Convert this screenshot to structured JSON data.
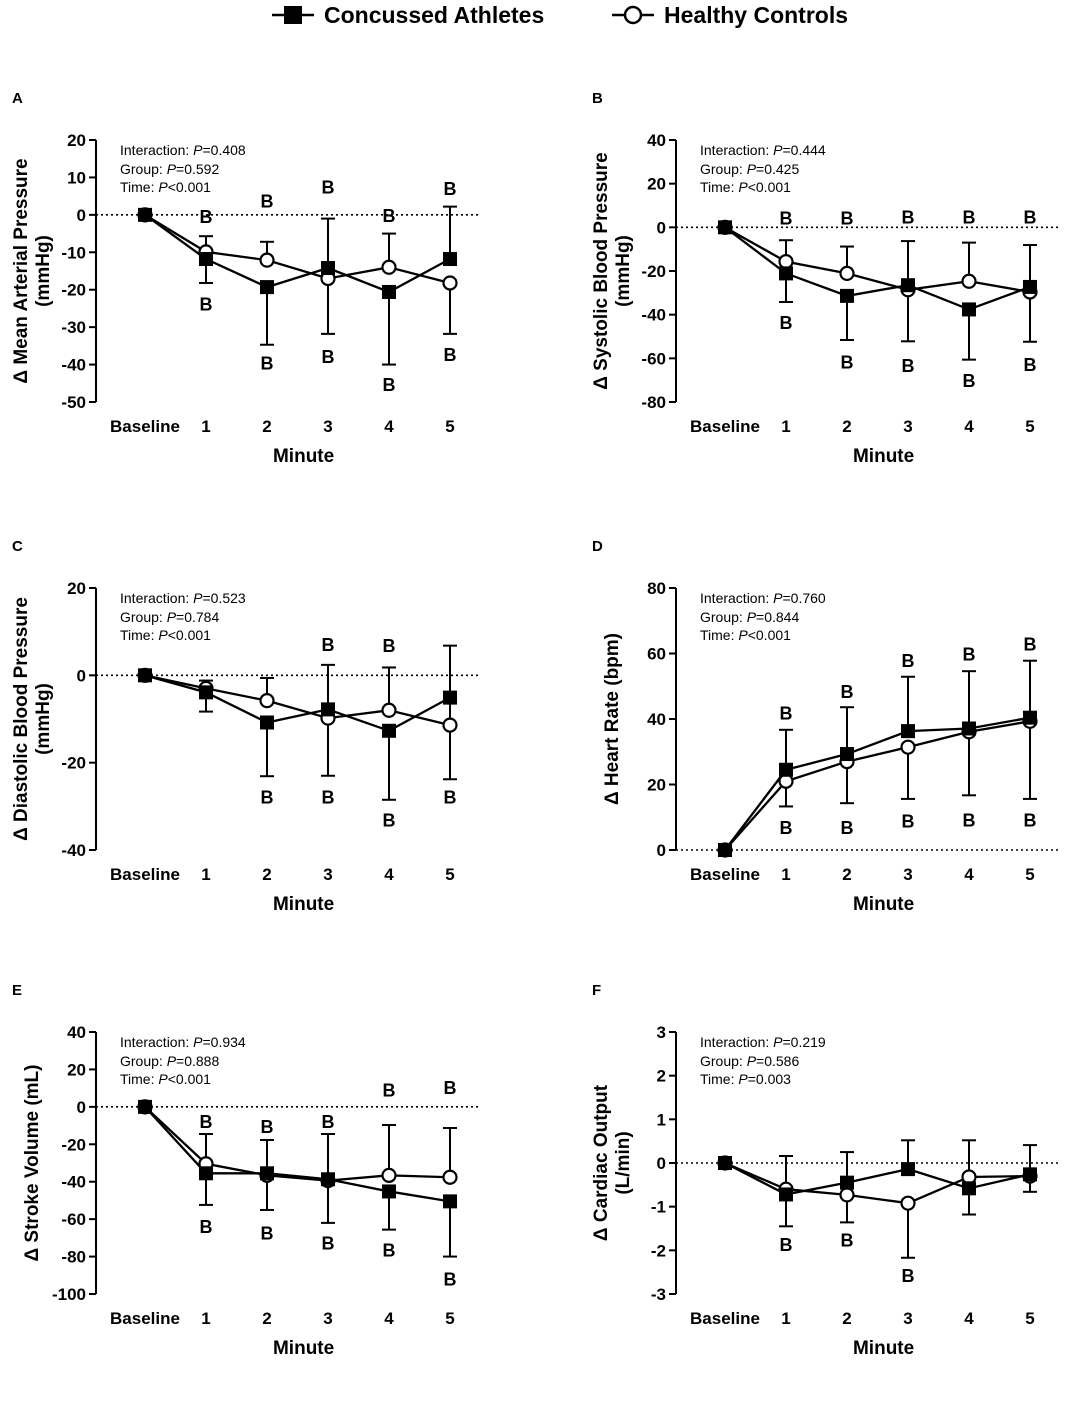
{
  "legend": {
    "concussed": "Concussed Athletes",
    "healthy": "Healthy Controls"
  },
  "stats_labels": {
    "interaction": "Interaction: ",
    "group": "Group: ",
    "time": "Time: ",
    "p": "P"
  },
  "chart_data": [
    {
      "panel": "A",
      "type": "line",
      "ylabel_lines": [
        "Δ Mean Arterial Pressure",
        "(mmHg)"
      ],
      "xlabel": "Minute",
      "categories": [
        "Baseline",
        "1",
        "2",
        "3",
        "4",
        "5"
      ],
      "ylim": [
        -50,
        20
      ],
      "yticks": [
        20,
        10,
        0,
        -10,
        -20,
        -30,
        -40,
        -50
      ],
      "stats": {
        "interaction": "=0.408",
        "group": "=0.592",
        "time": "<0.001"
      },
      "series": [
        {
          "name": "Concussed Athletes",
          "values": [
            0,
            -11.8,
            -19.3,
            -14.2,
            -20.6,
            -11.8
          ],
          "err_low": [
            null,
            -18.2,
            -34.7,
            -31.8,
            -40.0,
            null
          ],
          "err_high": [
            null,
            null,
            null,
            -1.0,
            null,
            2.2
          ]
        },
        {
          "name": "Healthy Controls",
          "values": [
            0,
            -9.9,
            -12.1,
            -17.0,
            -14.0,
            -18.2
          ],
          "err_low": [
            null,
            null,
            null,
            null,
            null,
            -31.8
          ],
          "err_high": [
            null,
            -5.7,
            -7.2,
            null,
            -5.0,
            null
          ]
        }
      ],
      "annotations": [
        {
          "text": "B",
          "x": 1,
          "y": -0.3
        },
        {
          "text": "B",
          "x": 1,
          "y": -23.7
        },
        {
          "text": "B",
          "x": 2,
          "y": 3.9
        },
        {
          "text": "B",
          "x": 2,
          "y": -39.5
        },
        {
          "text": "B",
          "x": 3,
          "y": 7.6
        },
        {
          "text": "B",
          "x": 3,
          "y": -37.7
        },
        {
          "text": "B",
          "x": 4,
          "y": -0.1
        },
        {
          "text": "B",
          "x": 4,
          "y": -45.2
        },
        {
          "text": "B",
          "x": 5,
          "y": 7.2
        },
        {
          "text": "B",
          "x": 5,
          "y": -37.2
        }
      ]
    },
    {
      "panel": "B",
      "type": "line",
      "ylabel_lines": [
        "Δ Systolic Blood Pressure",
        "(mmHg)"
      ],
      "xlabel": "Minute",
      "categories": [
        "Baseline",
        "1",
        "2",
        "3",
        "4",
        "5"
      ],
      "ylim": [
        -80,
        40
      ],
      "yticks": [
        40,
        20,
        0,
        -20,
        -40,
        -60,
        -80
      ],
      "stats": {
        "interaction": "=0.444",
        "group": "=0.425",
        "time": "<0.001"
      },
      "series": [
        {
          "name": "Concussed Athletes",
          "values": [
            0,
            -21.1,
            -31.4,
            -26.5,
            -37.6,
            -27.3
          ],
          "err_low": [
            null,
            -34.2,
            -51.6,
            -52.2,
            -60.6,
            -52.4
          ],
          "err_high": [
            null,
            null,
            null,
            null,
            null,
            null
          ]
        },
        {
          "name": "Healthy Controls",
          "values": [
            0,
            -15.7,
            -21.1,
            -28.6,
            -24.7,
            -29.6
          ],
          "err_low": [
            null,
            null,
            null,
            null,
            null,
            null
          ],
          "err_high": [
            null,
            -5.9,
            -8.8,
            -6.3,
            -7.0,
            -8.1
          ]
        }
      ],
      "annotations": [
        {
          "text": "B",
          "x": 1,
          "y": 4.6
        },
        {
          "text": "B",
          "x": 1,
          "y": -43.4
        },
        {
          "text": "B",
          "x": 2,
          "y": 4.6
        },
        {
          "text": "B",
          "x": 2,
          "y": -61.4
        },
        {
          "text": "B",
          "x": 3,
          "y": 5.0
        },
        {
          "text": "B",
          "x": 3,
          "y": -63.0
        },
        {
          "text": "B",
          "x": 4,
          "y": 5.0
        },
        {
          "text": "B",
          "x": 4,
          "y": -70.0
        },
        {
          "text": "B",
          "x": 5,
          "y": 5.0
        },
        {
          "text": "B",
          "x": 5,
          "y": -62.5
        }
      ]
    },
    {
      "panel": "C",
      "type": "line",
      "ylabel_lines": [
        "Δ Diastolic Blood Pressure",
        "(mmHg)"
      ],
      "xlabel": "Minute",
      "categories": [
        "Baseline",
        "1",
        "2",
        "3",
        "4",
        "5"
      ],
      "ylim": [
        -40,
        20
      ],
      "yticks": [
        20,
        0,
        -20,
        -40
      ],
      "stats": {
        "interaction": "=0.523",
        "group": "=0.784",
        "time": "<0.001"
      },
      "series": [
        {
          "name": "Concussed Athletes",
          "values": [
            0,
            -3.9,
            -10.8,
            -7.8,
            -12.7,
            -5.1
          ],
          "err_low": [
            null,
            -8.3,
            -23.1,
            -23.0,
            -28.5,
            -23.8
          ],
          "err_high": [
            null,
            null,
            null,
            null,
            null,
            6.8
          ]
        },
        {
          "name": "Healthy Controls",
          "values": [
            0,
            -3.0,
            -5.8,
            -9.8,
            -8.0,
            -11.4
          ],
          "err_low": [
            null,
            null,
            null,
            null,
            null,
            null
          ],
          "err_high": [
            null,
            -1.2,
            -0.6,
            2.4,
            1.8,
            null
          ]
        }
      ],
      "annotations": [
        {
          "text": "B",
          "x": 2,
          "y": -27.7
        },
        {
          "text": "B",
          "x": 3,
          "y": 7.2
        },
        {
          "text": "B",
          "x": 3,
          "y": -27.8
        },
        {
          "text": "B",
          "x": 4,
          "y": 7.0
        },
        {
          "text": "B",
          "x": 4,
          "y": -33.0
        },
        {
          "text": "B",
          "x": 5,
          "y": -27.8
        }
      ]
    },
    {
      "panel": "D",
      "type": "line",
      "ylabel_lines": [
        "Δ Heart Rate (bpm)"
      ],
      "xlabel": "Minute",
      "categories": [
        "Baseline",
        "1",
        "2",
        "3",
        "4",
        "5"
      ],
      "ylim": [
        0,
        80
      ],
      "yticks": [
        80,
        60,
        40,
        20,
        0
      ],
      "stats": {
        "interaction": "=0.760",
        "group": "=0.844",
        "time": "<0.001"
      },
      "series": [
        {
          "name": "Concussed Athletes",
          "values": [
            0,
            24.5,
            29.3,
            36.3,
            37.1,
            40.4
          ],
          "err_low": [
            null,
            null,
            null,
            null,
            null,
            null
          ],
          "err_high": [
            null,
            36.7,
            43.6,
            52.9,
            54.6,
            57.8
          ]
        },
        {
          "name": "Healthy Controls",
          "values": [
            0,
            21.0,
            27.0,
            31.4,
            36.1,
            39.3
          ],
          "err_low": [
            null,
            13.3,
            14.3,
            15.6,
            16.7,
            15.6
          ],
          "err_high": [
            null,
            null,
            null,
            null,
            null,
            null
          ]
        }
      ],
      "annotations": [
        {
          "text": "B",
          "x": 1,
          "y": 42.0
        },
        {
          "text": "B",
          "x": 1,
          "y": 7.0
        },
        {
          "text": "B",
          "x": 2,
          "y": 48.5
        },
        {
          "text": "B",
          "x": 2,
          "y": 7.0
        },
        {
          "text": "B",
          "x": 3,
          "y": 58.0
        },
        {
          "text": "B",
          "x": 3,
          "y": 9.0
        },
        {
          "text": "B",
          "x": 4,
          "y": 60.0
        },
        {
          "text": "B",
          "x": 4,
          "y": 9.3
        },
        {
          "text": "B",
          "x": 5,
          "y": 63.0
        },
        {
          "text": "B",
          "x": 5,
          "y": 9.3
        }
      ]
    },
    {
      "panel": "E",
      "type": "line",
      "ylabel_lines": [
        "Δ Stroke Volume (mL)"
      ],
      "xlabel": "Minute",
      "categories": [
        "Baseline",
        "1",
        "2",
        "3",
        "4",
        "5"
      ],
      "ylim": [
        -100,
        40
      ],
      "yticks": [
        40,
        20,
        0,
        -20,
        -40,
        -60,
        -80,
        -100
      ],
      "stats": {
        "interaction": "=0.934",
        "group": "=0.888",
        "time": "<0.001"
      },
      "series": [
        {
          "name": "Concussed Athletes",
          "values": [
            0,
            -35.5,
            -35.5,
            -38.7,
            -45.2,
            -50.5
          ],
          "err_low": [
            null,
            -52.4,
            -55.1,
            -62.0,
            -65.6,
            -80.0
          ],
          "err_high": [
            null,
            null,
            null,
            null,
            null,
            null
          ]
        },
        {
          "name": "Healthy Controls",
          "values": [
            0,
            -30.4,
            -36.6,
            -39.4,
            -36.6,
            -37.6
          ],
          "err_low": [
            null,
            null,
            null,
            null,
            null,
            null
          ],
          "err_high": [
            null,
            -14.5,
            -17.7,
            -14.5,
            -9.7,
            -11.3
          ]
        }
      ],
      "annotations": [
        {
          "text": "B",
          "x": 1,
          "y": -7.6
        },
        {
          "text": "B",
          "x": 1,
          "y": -63.7
        },
        {
          "text": "B",
          "x": 2,
          "y": -10.3
        },
        {
          "text": "B",
          "x": 2,
          "y": -67.1
        },
        {
          "text": "B",
          "x": 3,
          "y": -7.6
        },
        {
          "text": "B",
          "x": 3,
          "y": -72.4
        },
        {
          "text": "B",
          "x": 4,
          "y": 9.2
        },
        {
          "text": "B",
          "x": 4,
          "y": -76.3
        },
        {
          "text": "B",
          "x": 5,
          "y": 10.5
        },
        {
          "text": "B",
          "x": 5,
          "y": -91.7
        }
      ]
    },
    {
      "panel": "F",
      "type": "line",
      "ylabel_lines": [
        "Δ Cardiac Output",
        "(L/min)"
      ],
      "xlabel": "Minute",
      "categories": [
        "Baseline",
        "1",
        "2",
        "3",
        "4",
        "5"
      ],
      "ylim": [
        -3,
        3
      ],
      "yticks": [
        3,
        2,
        1,
        0,
        -1,
        -2,
        -3
      ],
      "stats": {
        "interaction": "=0.219",
        "group": "=0.586",
        "time": "=0.003"
      },
      "series": [
        {
          "name": "Concussed Athletes",
          "values": [
            0,
            -0.72,
            -0.45,
            -0.14,
            -0.58,
            -0.26
          ],
          "err_low": [
            null,
            -1.45,
            -1.36,
            null,
            -1.18,
            -0.66
          ],
          "err_high": [
            null,
            null,
            null,
            0.52,
            null,
            null
          ]
        },
        {
          "name": "Healthy Controls",
          "values": [
            0,
            -0.6,
            -0.73,
            -0.92,
            -0.32,
            -0.3
          ],
          "err_low": [
            null,
            null,
            null,
            -2.17,
            null,
            null
          ],
          "err_high": [
            null,
            0.16,
            0.25,
            null,
            0.52,
            0.41
          ]
        }
      ],
      "annotations": [
        {
          "text": "B",
          "x": 1,
          "y": -1.85
        },
        {
          "text": "B",
          "x": 2,
          "y": -1.75
        },
        {
          "text": "B",
          "x": 3,
          "y": -2.57
        }
      ]
    }
  ]
}
